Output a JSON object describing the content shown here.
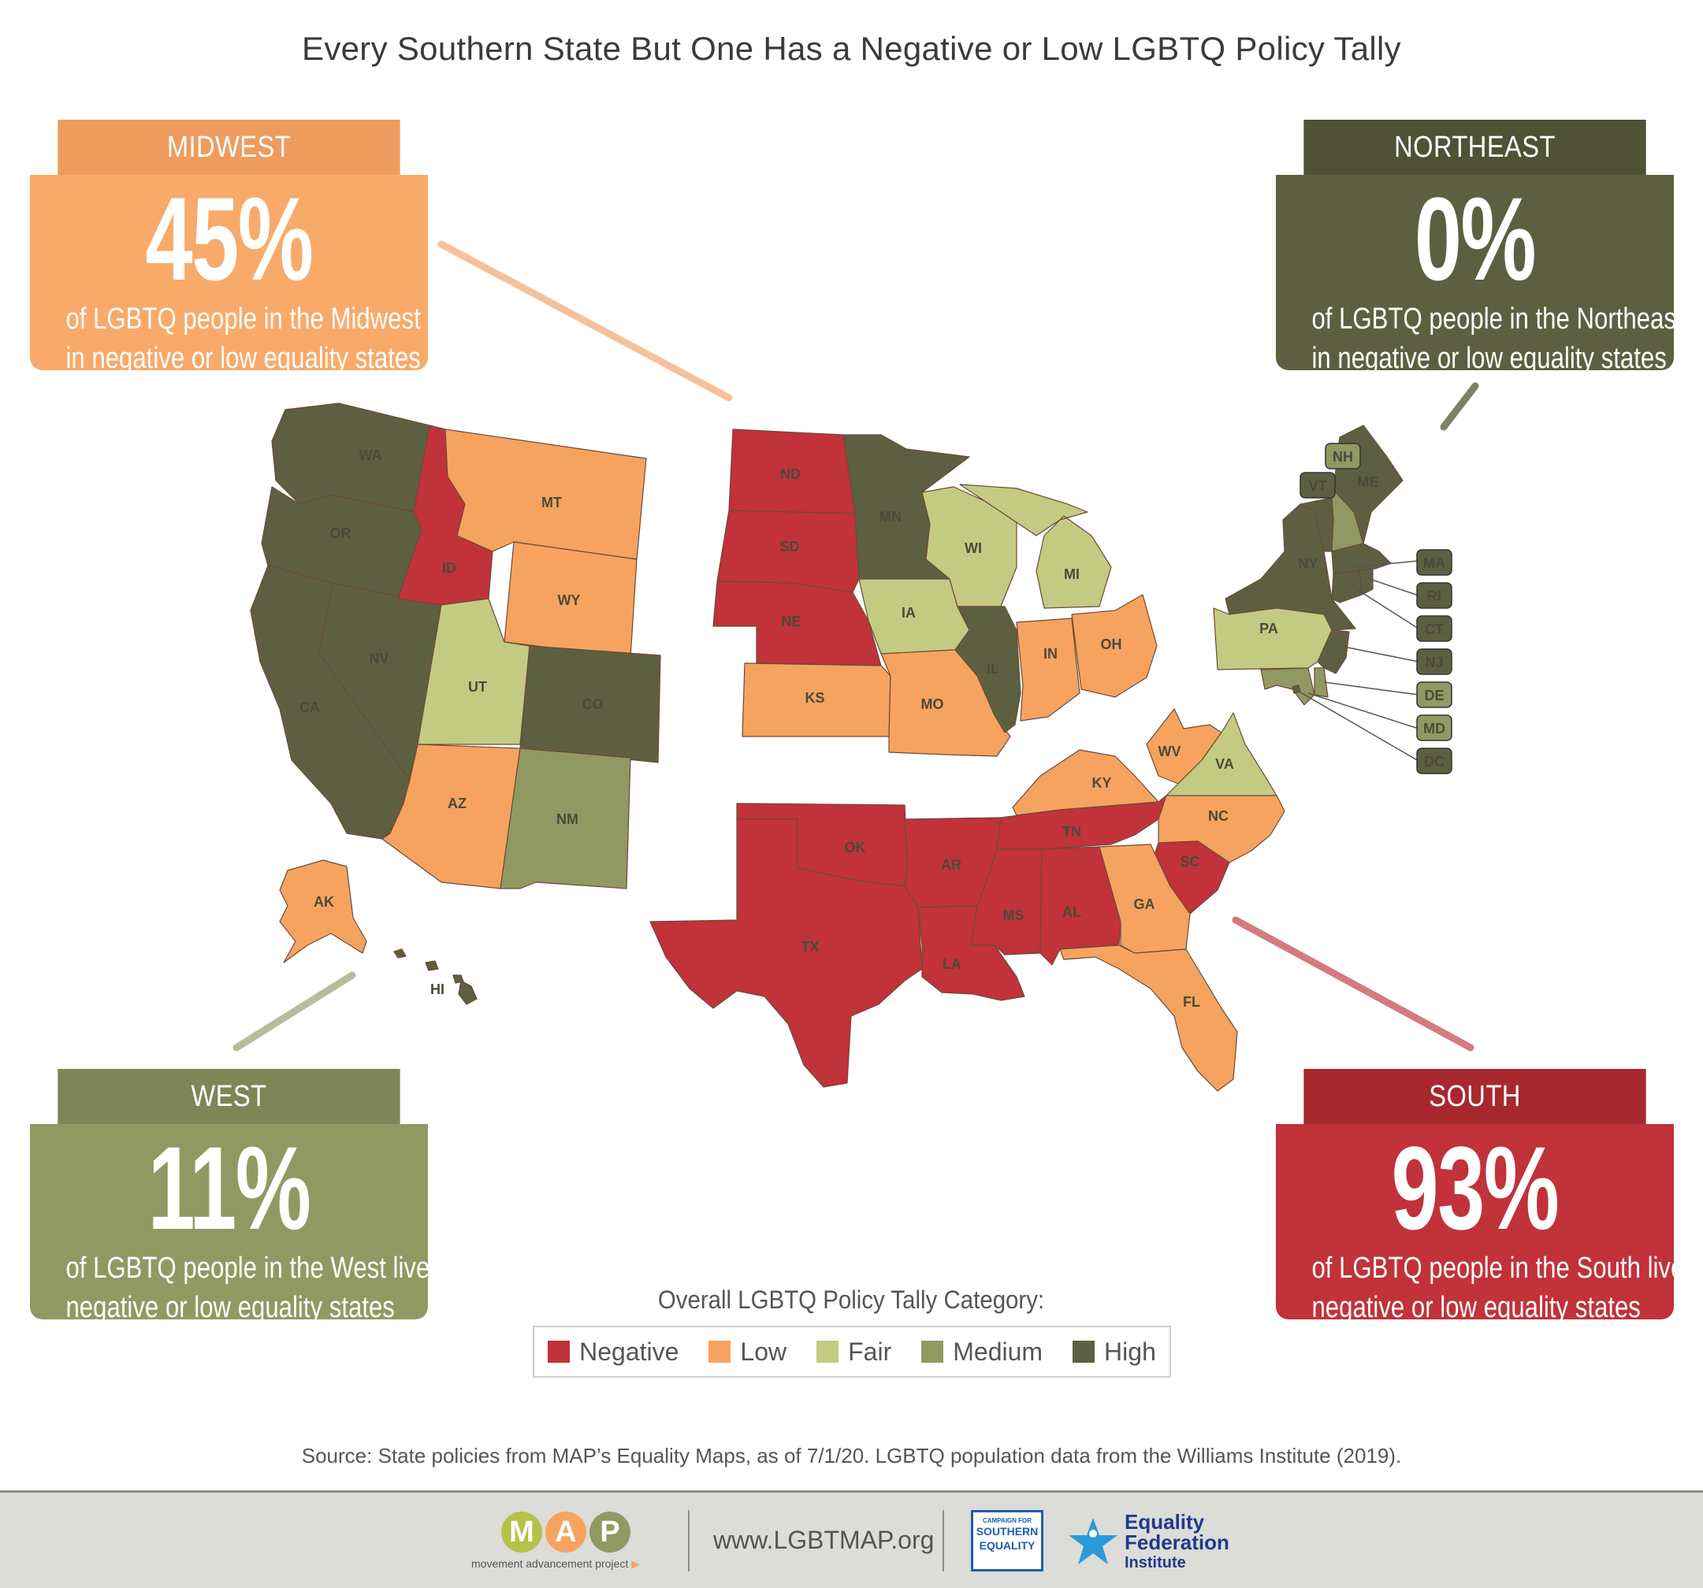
{
  "title": "Every Southern State But One Has a Negative or Low LGBTQ Policy Tally",
  "colors": {
    "negative": "#c1323a",
    "low": "#f6a35f",
    "fair": "#c3cb82",
    "medium": "#919963",
    "high": "#5d6040"
  },
  "callouts": {
    "midwest": {
      "header": "MIDWEST",
      "percent": "45%",
      "line1": "of LGBTQ people in the Midwest live",
      "line2": "in negative or low equality states",
      "header_color": "#ee9c5e",
      "body_color": "#f8aa6b"
    },
    "northeast": {
      "header": "NORTHEAST",
      "percent": "0%",
      "line1": "of LGBTQ people in the Northeast live",
      "line2": "in negative or low equality states",
      "header_color": "#4f5234",
      "body_color": "#5d6040"
    },
    "west": {
      "header": "WEST",
      "percent": "11%",
      "line1": "of LGBTQ people in the West live in",
      "line2": "negative or low equality states",
      "header_color": "#7e8557",
      "body_color": "#919963"
    },
    "south": {
      "header": "SOUTH",
      "percent": "93%",
      "line1": "of LGBTQ people in the South live in",
      "line2": "negative or low equality states",
      "header_color": "#a8282f",
      "body_color": "#c1323a"
    }
  },
  "states": {
    "WA": "high",
    "OR": "high",
    "CA": "high",
    "NV": "high",
    "ID": "negative",
    "MT": "low",
    "WY": "low",
    "UT": "fair",
    "CO": "high",
    "AZ": "low",
    "NM": "medium",
    "AK": "low",
    "HI": "high",
    "ND": "negative",
    "SD": "negative",
    "NE": "negative",
    "KS": "low",
    "MN": "high",
    "IA": "fair",
    "MO": "low",
    "WI": "fair",
    "IL": "high",
    "MI": "fair",
    "IN": "low",
    "OH": "low",
    "OK": "negative",
    "TX": "negative",
    "AR": "negative",
    "LA": "negative",
    "MS": "negative",
    "AL": "negative",
    "TN": "negative",
    "KY": "low",
    "WV": "low",
    "VA": "fair",
    "NC": "low",
    "SC": "negative",
    "GA": "low",
    "FL": "low",
    "NY": "high",
    "PA": "fair",
    "VT": "high",
    "NH": "medium",
    "ME": "high",
    "MA": "high",
    "RI": "high",
    "CT": "high",
    "NJ": "high",
    "DE": "medium",
    "MD": "medium",
    "DC": "high"
  },
  "legend": {
    "title": "Overall LGBTQ Policy Tally Category:",
    "items": [
      {
        "label": "Negative",
        "color": "#c1323a"
      },
      {
        "label": "Low",
        "color": "#f6a35f"
      },
      {
        "label": "Fair",
        "color": "#c3cb82"
      },
      {
        "label": "Medium",
        "color": "#919963"
      },
      {
        "label": "High",
        "color": "#5d6040"
      }
    ]
  },
  "source": "Source: State policies from MAP’s Equality Maps, as of 7/1/20. LGBTQ population data from the Williams Institute (2019).",
  "footer": {
    "map_letters": [
      "M",
      "A",
      "P"
    ],
    "map_tagline": "movement advancement project",
    "website": "www.LGBTMAP.org",
    "cse_small": "CAMPAIGN FOR",
    "cse_line1": "SOUTHERN",
    "cse_line2": "EQUALITY",
    "efi_line1": "Equality",
    "efi_line2": "Federation",
    "efi_line3": "Institute"
  }
}
